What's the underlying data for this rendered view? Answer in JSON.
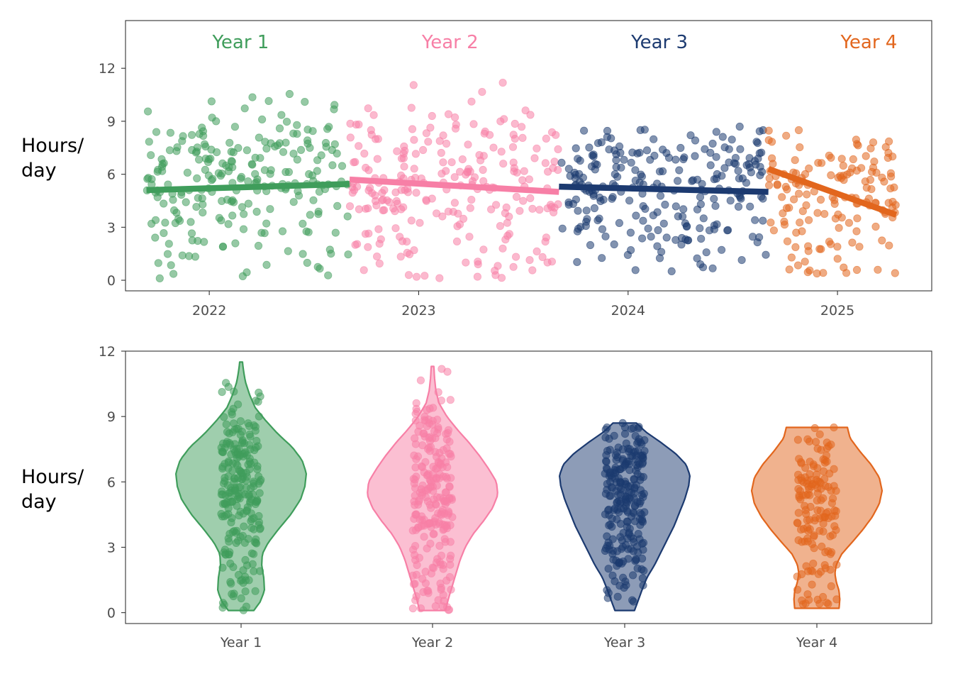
{
  "colors": {
    "Year 1": "#3f9d5b",
    "Year 2": "#f77fa6",
    "Year 3": "#1c3a70",
    "Year 4": "#e2661d"
  },
  "chart_data": [
    {
      "type": "scatter",
      "ylabel": "Hours/\nday",
      "xlim": [
        2021.6,
        2025.45
      ],
      "ylim": [
        -0.6,
        14.7
      ],
      "x_ticks": [
        "2022",
        "2023",
        "2024",
        "2025"
      ],
      "y_ticks": [
        "0",
        "3",
        "6",
        "9",
        "12"
      ],
      "annotations": [
        {
          "text": "Year 1",
          "x": 2022.15,
          "y": 13.5,
          "color_key": "Year 1"
        },
        {
          "text": "Year 2",
          "x": 2023.15,
          "y": 13.5,
          "color_key": "Year 2"
        },
        {
          "text": "Year 3",
          "x": 2024.15,
          "y": 13.5,
          "color_key": "Year 3"
        },
        {
          "text": "Year 4",
          "x": 2025.15,
          "y": 13.5,
          "color_key": "Year 4"
        }
      ],
      "series": [
        {
          "name": "Year 1",
          "x_range": [
            2021.7,
            2022.67
          ],
          "trend": [
            [
              2021.7,
              5.1
            ],
            [
              2022.67,
              5.45
            ]
          ]
        },
        {
          "name": "Year 2",
          "x_range": [
            2022.67,
            2023.67
          ],
          "trend": [
            [
              2022.67,
              5.7
            ],
            [
              2023.67,
              5.0
            ]
          ]
        },
        {
          "name": "Year 3",
          "x_range": [
            2023.67,
            2024.67
          ],
          "trend": [
            [
              2023.67,
              5.3
            ],
            [
              2024.67,
              5.0
            ]
          ]
        },
        {
          "name": "Year 4",
          "x_range": [
            2024.67,
            2025.28
          ],
          "trend": [
            [
              2024.67,
              6.3
            ],
            [
              2025.28,
              3.7
            ]
          ]
        }
      ]
    },
    {
      "type": "violin",
      "ylabel": "Hours/\nday",
      "ylim": [
        -0.5,
        12
      ],
      "categories": [
        "Year 1",
        "Year 2",
        "Year 3",
        "Year 4"
      ],
      "y_ticks": [
        "0",
        "3",
        "6",
        "9",
        "12"
      ],
      "violins": [
        {
          "name": "Year 1",
          "min": 0.1,
          "max": 11.5,
          "profile": [
            [
              0.1,
              0.18
            ],
            [
              0.5,
              0.27
            ],
            [
              1.0,
              0.33
            ],
            [
              1.6,
              0.32
            ],
            [
              2.2,
              0.29
            ],
            [
              2.7,
              0.3
            ],
            [
              3.2,
              0.38
            ],
            [
              3.8,
              0.52
            ],
            [
              4.5,
              0.7
            ],
            [
              5.2,
              0.84
            ],
            [
              5.8,
              0.9
            ],
            [
              6.4,
              0.92
            ],
            [
              7.0,
              0.86
            ],
            [
              7.6,
              0.72
            ],
            [
              8.2,
              0.52
            ],
            [
              8.8,
              0.35
            ],
            [
              9.4,
              0.2
            ],
            [
              10.0,
              0.12
            ],
            [
              10.6,
              0.06
            ],
            [
              11.2,
              0.03
            ],
            [
              11.5,
              0.02
            ]
          ]
        },
        {
          "name": "Year 2",
          "min": 0.1,
          "max": 11.3,
          "profile": [
            [
              0.1,
              0.2
            ],
            [
              0.6,
              0.24
            ],
            [
              1.2,
              0.3
            ],
            [
              1.8,
              0.36
            ],
            [
              2.4,
              0.42
            ],
            [
              3.0,
              0.5
            ],
            [
              3.6,
              0.62
            ],
            [
              4.2,
              0.78
            ],
            [
              4.8,
              0.92
            ],
            [
              5.4,
              1.0
            ],
            [
              6.0,
              0.98
            ],
            [
              6.6,
              0.86
            ],
            [
              7.2,
              0.72
            ],
            [
              7.8,
              0.56
            ],
            [
              8.4,
              0.38
            ],
            [
              9.0,
              0.22
            ],
            [
              9.6,
              0.1
            ],
            [
              10.2,
              0.05
            ],
            [
              10.8,
              0.03
            ],
            [
              11.3,
              0.02
            ]
          ]
        },
        {
          "name": "Year 3",
          "min": 0.1,
          "max": 8.7,
          "profile": [
            [
              0.1,
              0.15
            ],
            [
              0.5,
              0.2
            ],
            [
              1.0,
              0.26
            ],
            [
              1.6,
              0.34
            ],
            [
              2.2,
              0.46
            ],
            [
              2.8,
              0.56
            ],
            [
              3.4,
              0.66
            ],
            [
              4.0,
              0.76
            ],
            [
              4.6,
              0.84
            ],
            [
              5.2,
              0.92
            ],
            [
              5.8,
              0.98
            ],
            [
              6.3,
              1.0
            ],
            [
              6.8,
              0.94
            ],
            [
              7.3,
              0.78
            ],
            [
              7.8,
              0.56
            ],
            [
              8.3,
              0.32
            ],
            [
              8.7,
              0.18
            ]
          ]
        },
        {
          "name": "Year 4",
          "min": 0.2,
          "max": 8.5,
          "profile": [
            [
              0.2,
              0.32
            ],
            [
              0.6,
              0.33
            ],
            [
              1.0,
              0.32
            ],
            [
              1.4,
              0.28
            ],
            [
              1.8,
              0.26
            ],
            [
              2.2,
              0.28
            ],
            [
              2.7,
              0.36
            ],
            [
              3.2,
              0.5
            ],
            [
              3.8,
              0.66
            ],
            [
              4.4,
              0.8
            ],
            [
              5.0,
              0.9
            ],
            [
              5.6,
              0.94
            ],
            [
              6.2,
              0.9
            ],
            [
              6.8,
              0.78
            ],
            [
              7.4,
              0.62
            ],
            [
              8.0,
              0.48
            ],
            [
              8.5,
              0.44
            ]
          ]
        }
      ]
    }
  ]
}
